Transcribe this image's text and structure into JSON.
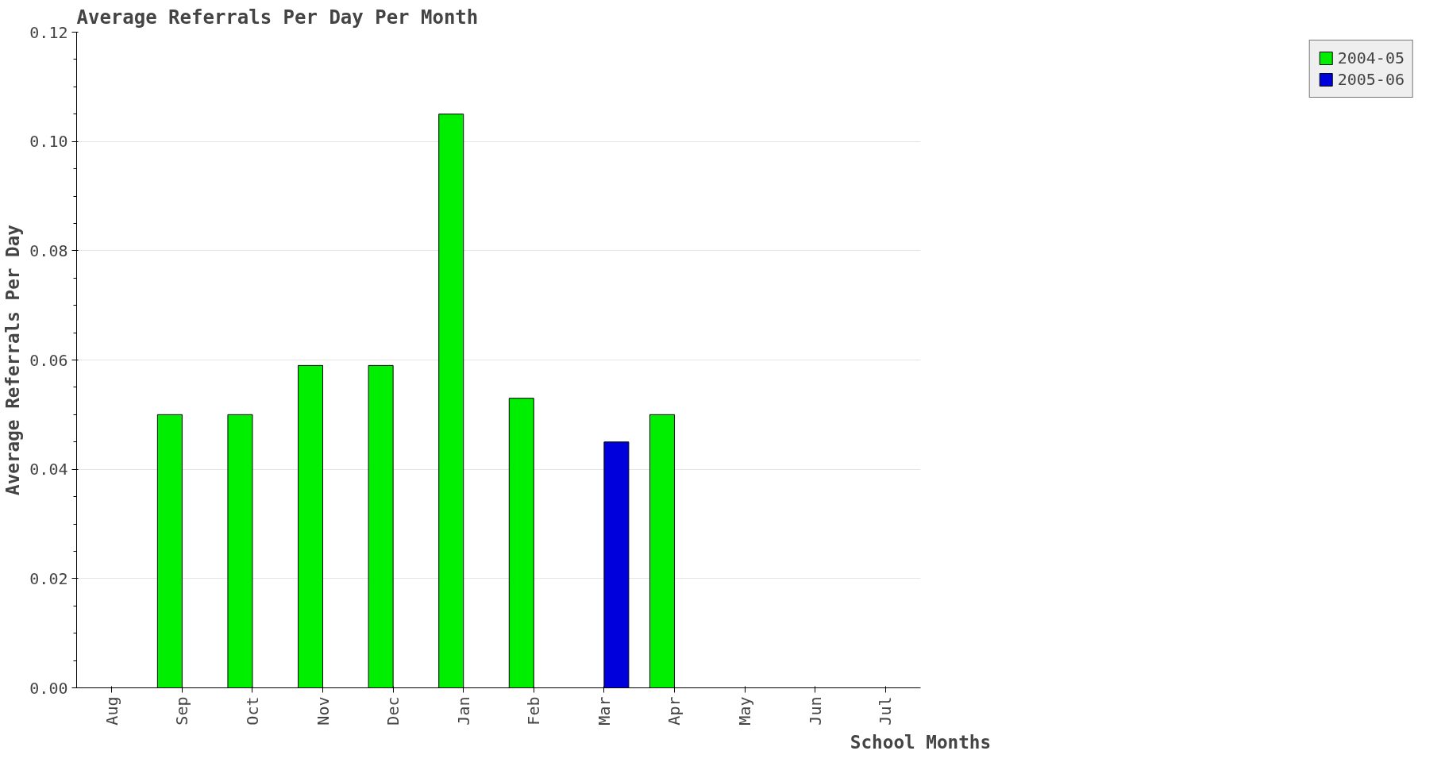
{
  "chart_data": {
    "type": "bar",
    "title": "Average Referrals Per Day Per Month",
    "xlabel": "School Months",
    "ylabel": "Average Referrals Per Day",
    "categories": [
      "Aug",
      "Sep",
      "Oct",
      "Nov",
      "Dec",
      "Jan",
      "Feb",
      "Mar",
      "Apr",
      "May",
      "Jun",
      "Jul"
    ],
    "series": [
      {
        "name": "2004-05",
        "color": "#00ee00",
        "values": [
          null,
          0.05,
          0.05,
          0.059,
          0.059,
          0.105,
          0.053,
          null,
          0.05,
          null,
          null,
          null
        ]
      },
      {
        "name": "2005-06",
        "color": "#0000dd",
        "values": [
          null,
          null,
          null,
          null,
          null,
          null,
          null,
          0.045,
          null,
          null,
          null,
          null
        ]
      }
    ],
    "ylim": [
      0,
      0.12
    ],
    "yticks": [
      {
        "value": 0,
        "label": "0.00"
      },
      {
        "value": 0.02,
        "label": "0.02"
      },
      {
        "value": 0.04,
        "label": "0.04"
      },
      {
        "value": 0.06,
        "label": "0.06"
      },
      {
        "value": 0.08,
        "label": "0.08"
      },
      {
        "value": 0.1,
        "label": "0.10"
      },
      {
        "value": 0.12,
        "label": "0.12"
      }
    ],
    "grid": "y",
    "legend": "top right"
  }
}
